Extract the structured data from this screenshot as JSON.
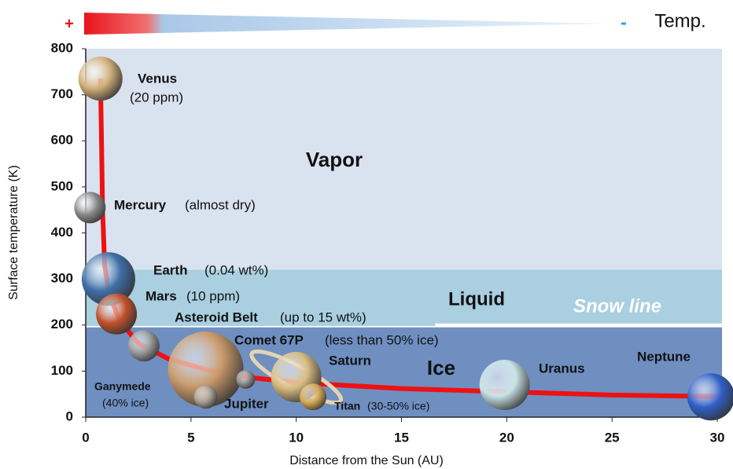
{
  "chart_data": {
    "type": "scatter",
    "xlabel": "Distance from the Sun (AU)",
    "ylabel": "Surface temperature (K)",
    "xlim": [
      0,
      30
    ],
    "ylim": [
      0,
      800
    ],
    "xticks": [
      0,
      5,
      10,
      15,
      20,
      25,
      30
    ],
    "yticks": [
      0,
      100,
      200,
      300,
      400,
      500,
      600,
      700,
      800
    ],
    "temp_scale": {
      "hot": "+",
      "cold": "-",
      "label": "Temp."
    },
    "regions": [
      {
        "label": "Vapor",
        "range": [
          320,
          800
        ],
        "color": "#d9e2ef"
      },
      {
        "label": "Liquid",
        "range": [
          198,
          320
        ],
        "color": "#a9cfe0"
      },
      {
        "label": "Ice",
        "range": [
          0,
          195
        ],
        "color": "#6f8fc1"
      }
    ],
    "snow_line": {
      "label": "Snow line",
      "value": 200,
      "x": [
        16.6,
        30
      ]
    },
    "curve": {
      "color": "#ee1111",
      "x": [
        0.7,
        0.75,
        0.8,
        0.9,
        1.1,
        1.6,
        2.5,
        4,
        6,
        8,
        10,
        15,
        20,
        25,
        30
      ],
      "y": [
        735,
        600,
        450,
        330,
        270,
        210,
        160,
        125,
        100,
        85,
        75,
        62,
        55,
        48,
        45
      ]
    },
    "points": [
      {
        "name": "Venus",
        "note": "(20 ppm)",
        "x": 0.7,
        "y": 735,
        "color": "#d2b07a"
      },
      {
        "name": "Mercury",
        "note": "(almost dry)",
        "x": 0.2,
        "y": 455,
        "color": "#8a8a8a"
      },
      {
        "name": "Earth",
        "note": "(0.04 wt%)",
        "x": 1.08,
        "y": 300,
        "color": "#3f6fa8"
      },
      {
        "name": "Mars",
        "note": "(10 ppm)",
        "x": 1.46,
        "y": 224,
        "color": "#c2502a"
      },
      {
        "name": "Asteroid Belt",
        "note": "(up to 15 wt%)",
        "x": 2.76,
        "y": 155,
        "color": "#9a9a9a"
      },
      {
        "name": "Jupiter",
        "x": 5.7,
        "y": 104,
        "color": "#c9996a"
      },
      {
        "name": "Ganymede",
        "note": "(40% ice)",
        "x": 5.7,
        "y": 44,
        "color": "#a59d92"
      },
      {
        "name": "Comet 67P",
        "note": "(less than 50% ice)",
        "x": 7.6,
        "y": 82,
        "color": "#8d8d8d"
      },
      {
        "name": "Saturn",
        "x": 10.0,
        "y": 87,
        "color": "#d8bd82"
      },
      {
        "name": "Titan",
        "note": "(30-50% ice)",
        "x": 10.8,
        "y": 44,
        "color": "#d5a850"
      },
      {
        "name": "Uranus",
        "x": 19.9,
        "y": 70,
        "color": "#c8e2e6"
      },
      {
        "name": "Neptune",
        "x": 29.7,
        "y": 44,
        "color": "#2f5fc8"
      }
    ]
  }
}
